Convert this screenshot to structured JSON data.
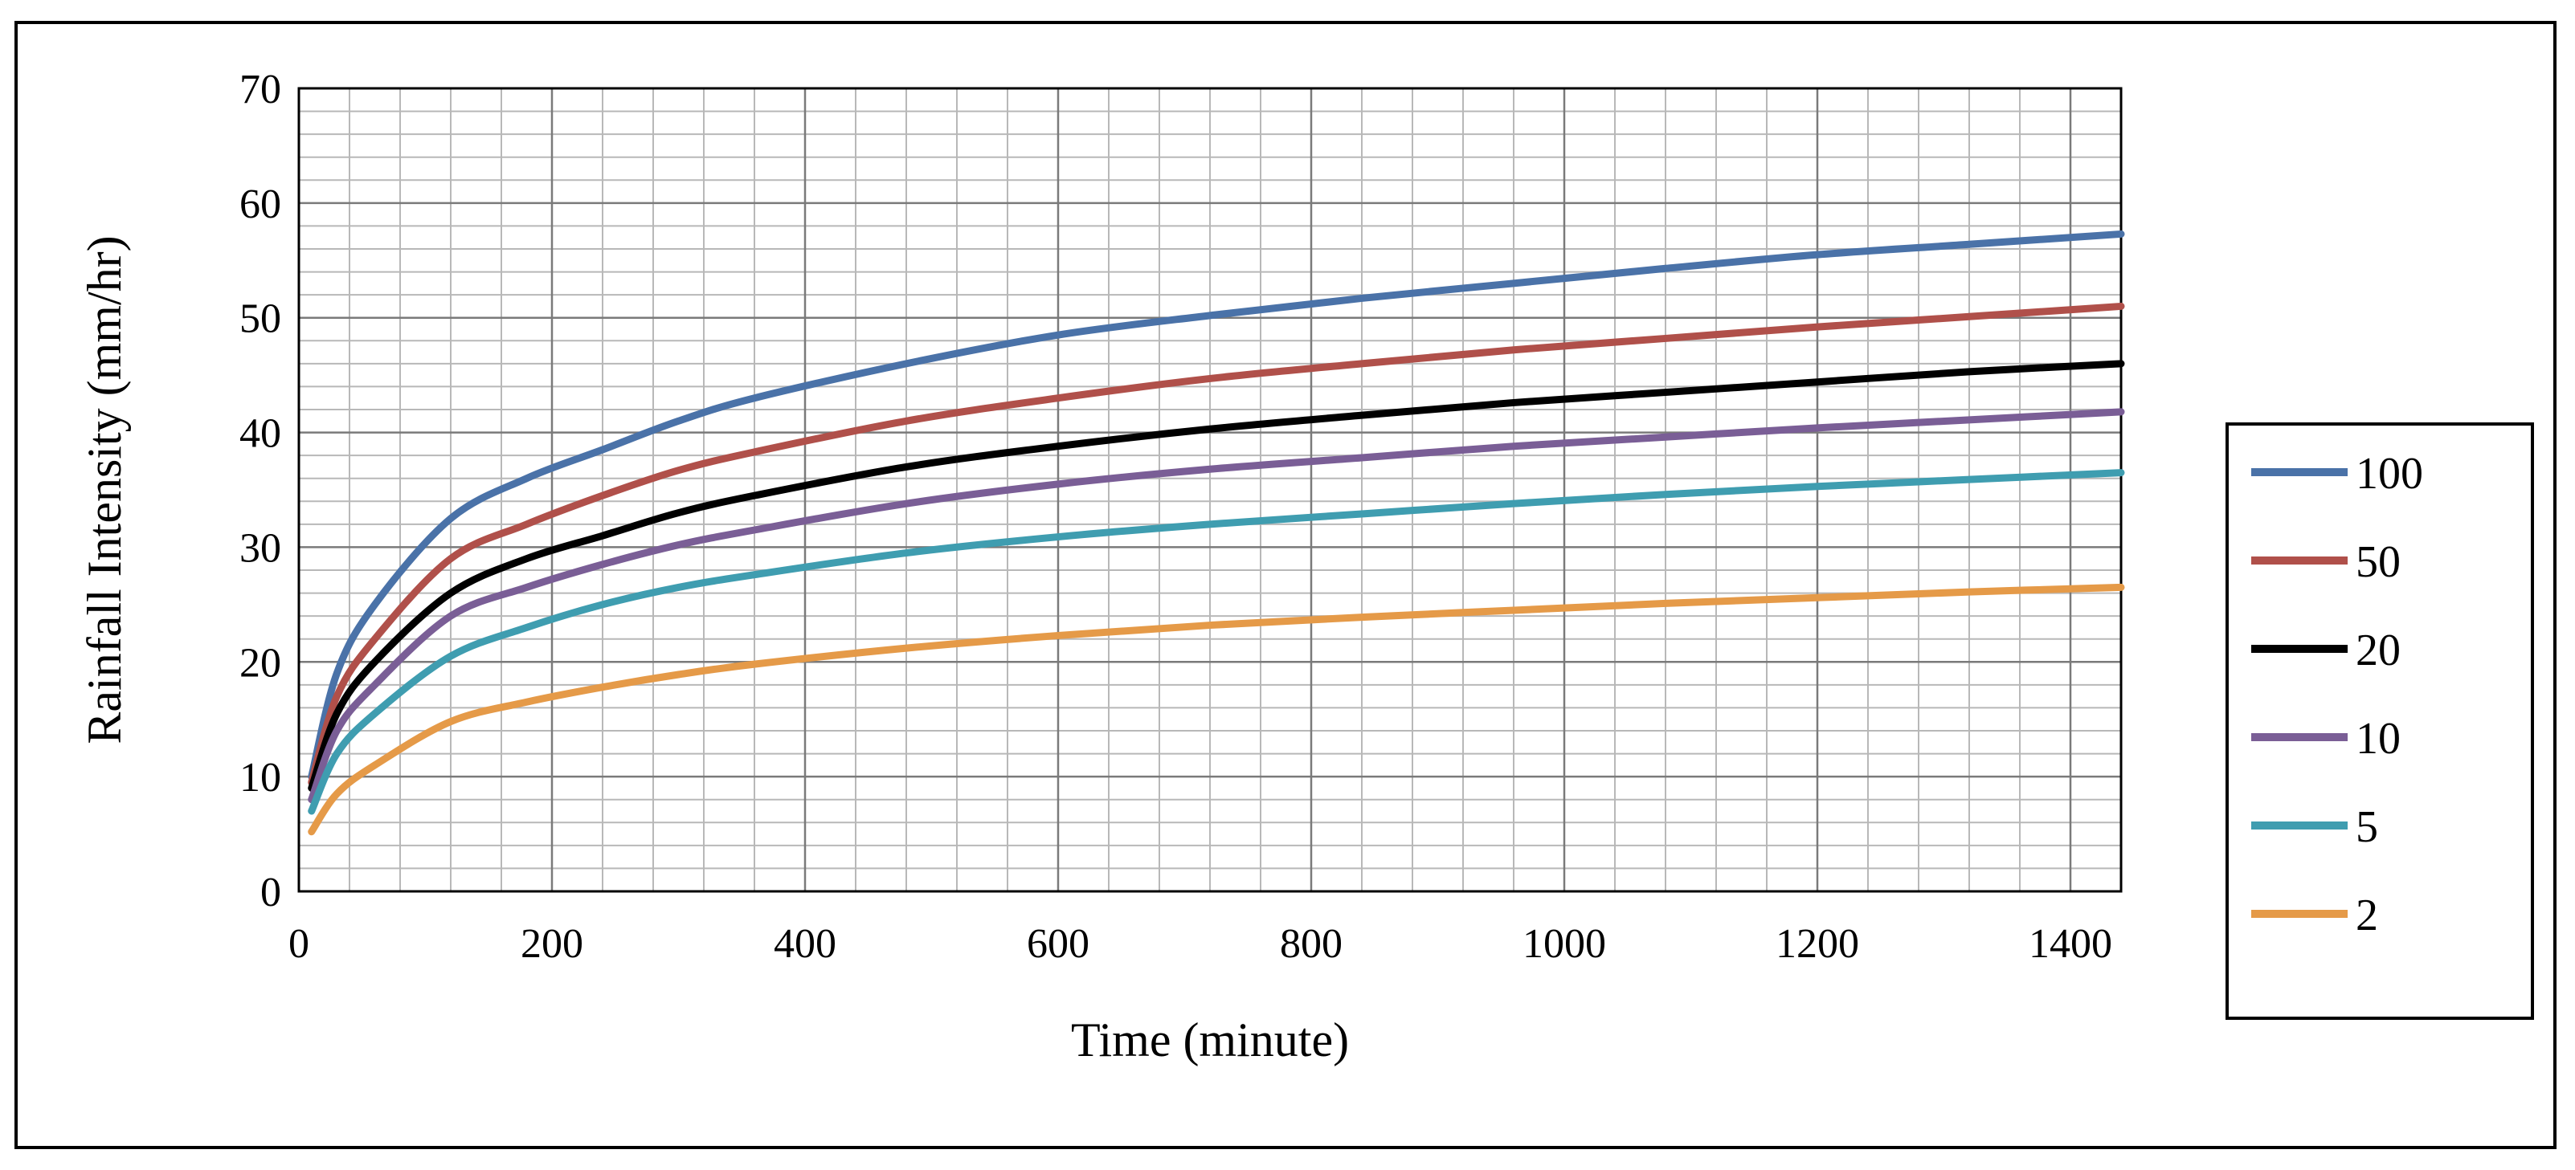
{
  "chart_data": {
    "type": "line",
    "title": "",
    "xlabel": "Time (minute)",
    "ylabel": "Rainfall Intensity (mm/hr)",
    "xlim": [
      0,
      1440
    ],
    "ylim": [
      0,
      70
    ],
    "xticks": [
      0,
      200,
      400,
      600,
      800,
      1000,
      1200,
      1400
    ],
    "yticks": [
      0,
      10,
      20,
      30,
      40,
      50,
      60,
      70
    ],
    "grid": "on",
    "legend_position": "right",
    "x": [
      10,
      30,
      60,
      120,
      180,
      240,
      300,
      360,
      480,
      600,
      720,
      840,
      960,
      1080,
      1200,
      1320,
      1440
    ],
    "series": [
      {
        "name": "100",
        "color": "#4a72a8",
        "values": [
          10,
          19,
          25,
          32.5,
          36,
          38.5,
          41,
          43,
          46,
          48.5,
          50.2,
          51.7,
          53,
          54.3,
          55.5,
          56.4,
          57.3
        ]
      },
      {
        "name": "50",
        "color": "#b0504a",
        "values": [
          9.5,
          17,
          22,
          29,
          32,
          34.5,
          36.7,
          38.3,
          41,
          43,
          44.7,
          46,
          47.2,
          48.2,
          49.2,
          50.1,
          51
        ]
      },
      {
        "name": "20",
        "color": "#000000",
        "values": [
          9,
          15.5,
          20,
          26,
          29,
          31,
          33,
          34.5,
          37,
          38.8,
          40.3,
          41.5,
          42.6,
          43.5,
          44.4,
          45.3,
          46
        ]
      },
      {
        "name": "10",
        "color": "#7a5e96",
        "values": [
          8,
          14,
          18,
          24,
          26.5,
          28.5,
          30.2,
          31.5,
          33.8,
          35.5,
          36.8,
          37.8,
          38.8,
          39.6,
          40.4,
          41.1,
          41.8
        ]
      },
      {
        "name": "5",
        "color": "#3f9db0",
        "values": [
          7,
          12,
          15.5,
          20.5,
          23,
          25,
          26.5,
          27.6,
          29.5,
          30.9,
          32,
          32.9,
          33.8,
          34.6,
          35.3,
          35.9,
          36.5
        ]
      },
      {
        "name": "2",
        "color": "#e59a48",
        "values": [
          5.2,
          8.5,
          11,
          14.8,
          16.5,
          17.8,
          18.9,
          19.8,
          21.2,
          22.3,
          23.2,
          23.9,
          24.5,
          25.1,
          25.6,
          26.1,
          26.5
        ]
      }
    ]
  }
}
